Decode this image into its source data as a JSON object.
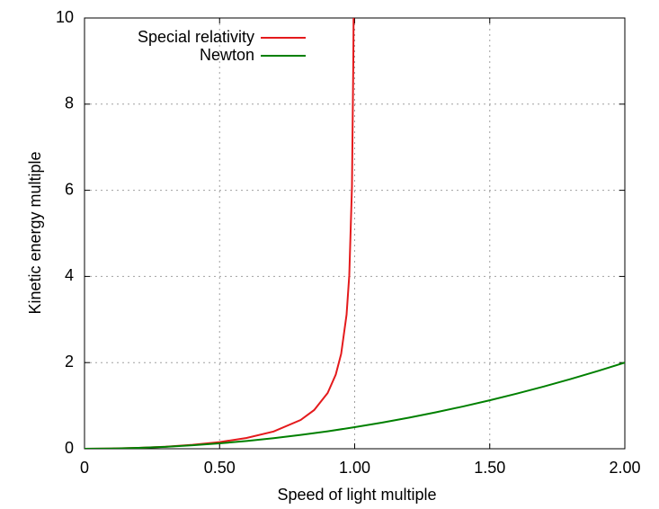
{
  "chart_data": {
    "type": "line",
    "xlabel": "Speed of light multiple",
    "ylabel": "Kinetic energy multiple",
    "xlim": [
      0,
      2
    ],
    "ylim": [
      0,
      10
    ],
    "xticks": [
      0,
      {
        "value": 0.5,
        "label": "0.50"
      },
      {
        "value": 1,
        "label": "1.00"
      },
      {
        "value": 1.5,
        "label": "1.50"
      },
      {
        "value": 2,
        "label": "2.00"
      }
    ],
    "yticks": [
      0,
      2,
      4,
      6,
      8,
      10
    ],
    "grid": true,
    "legend": "top-left",
    "series": [
      {
        "name": "Special relativity",
        "color": "#e41a1c",
        "x": [
          0,
          0.1,
          0.2,
          0.3,
          0.4,
          0.5,
          0.6,
          0.7,
          0.8,
          0.85,
          0.9,
          0.93,
          0.95,
          0.97,
          0.98,
          0.99,
          0.995,
          0.996
        ],
        "values": [
          0,
          0.005,
          0.021,
          0.048,
          0.091,
          0.155,
          0.25,
          0.4,
          0.667,
          0.898,
          1.294,
          1.721,
          2.203,
          3.113,
          4.025,
          6.089,
          9.013,
          10
        ]
      },
      {
        "name": "Newton",
        "color": "#008000",
        "x": [
          0,
          0.1,
          0.2,
          0.3,
          0.4,
          0.5,
          0.6,
          0.7,
          0.8,
          0.9,
          1,
          1.1,
          1.2,
          1.3,
          1.4,
          1.5,
          1.6,
          1.7,
          1.8,
          1.9,
          2
        ],
        "values": [
          0,
          0.005,
          0.02,
          0.045,
          0.08,
          0.125,
          0.18,
          0.245,
          0.32,
          0.405,
          0.5,
          0.605,
          0.72,
          0.845,
          0.98,
          1.125,
          1.28,
          1.445,
          1.62,
          1.805,
          2
        ]
      }
    ]
  }
}
